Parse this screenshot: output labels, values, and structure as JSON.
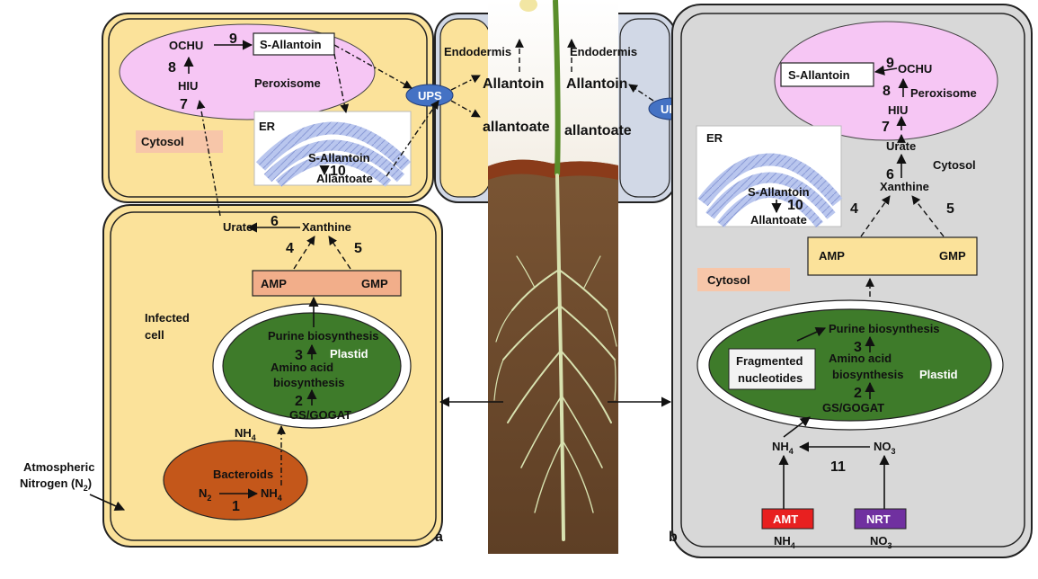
{
  "left_cell": {
    "peroxisome": {
      "ochu": "OCHU",
      "hiu": "HIU",
      "s_allantoin": "S-Allantoin",
      "label": "Peroxisome",
      "step7": "7",
      "step8": "8",
      "step9": "9"
    },
    "er": {
      "label": "ER",
      "s_allantoin": "S-Allantoin",
      "allantoate": "Allantoate",
      "step10": "10"
    },
    "cytosol": "Cytosol",
    "infected": {
      "urate": "Urate",
      "xanthine": "Xanthine",
      "step6": "6",
      "step4": "4",
      "step5": "5",
      "amp": "AMP",
      "gmp": "GMP",
      "cell_label_1": "Infected",
      "cell_label_2": "cell",
      "purine": "Purine biosynthesis",
      "step3": "3",
      "amino1": "Amino acid",
      "amino2": "biosynthesis",
      "plastid": "Plastid",
      "step2": "2",
      "gsgogat": "GS/GOGAT",
      "nh4": "NH",
      "nh4_sub": "4",
      "bacteroids": "Bacteroids",
      "n2": "N",
      "n2_sub": "2",
      "nh4b": "NH",
      "nh4b_sub": "4",
      "step1": "1"
    },
    "atm1": "Atmospheric",
    "atm2": "Nitrogen (N",
    "atm2_sub": "2",
    "atm2_end": ")",
    "panel": "a"
  },
  "center": {
    "endo_left": "Endodermis",
    "endo_right": "Endodermis",
    "allantoin_left": "Allantoin",
    "allantoin_right": "Allantoin",
    "allantoate_left": "allantoate",
    "allantoate_right": "allantoate",
    "ups_left": "UPS",
    "ups_right": "UPS"
  },
  "right_cell": {
    "peroxisome": {
      "s_allantoin": "S-Allantoin",
      "ochu": "OCHU",
      "hiu": "HIU",
      "label": "Peroxisome",
      "step9": "9",
      "step8": "8",
      "step7": "7"
    },
    "urate": "Urate",
    "step6": "6",
    "cytosol_small": "Cytosol",
    "xanthine": "Xanthine",
    "step4": "4",
    "step5": "5",
    "er": {
      "label": "ER",
      "s_allantoin": "S-Allantoin",
      "allantoate": "Allantoate",
      "step10": "10"
    },
    "amp": "AMP",
    "gmp": "GMP",
    "cytosol": "Cytosol",
    "purine": "Purine biosynthesis",
    "step3": "3",
    "amino1": "Amino acid",
    "amino2": "biosynthesis",
    "fragmented1": "Fragmented",
    "fragmented2": "nucleotides",
    "plastid": "Plastid",
    "step2": "2",
    "gsgogat": "GS/GOGAT",
    "nh4": "NH",
    "nh4_sub": "4",
    "no3": "NO",
    "no3_sub": "3",
    "step11": "11",
    "amt": "AMT",
    "nrt": "NRT",
    "amt_nh4": "NH",
    "amt_nh4_sub": "4",
    "nrt_no3": "NO",
    "nrt_no3_sub": "3",
    "panel": "b"
  },
  "colors": {
    "cell_yellow": "#fbe29a",
    "peroxisome": "#f6c6f4",
    "plastid": "#3e7b2a",
    "bacteroids": "#c4571a",
    "cytosol_label": "#f7c6a9",
    "amp_left": "#f2ae8a",
    "grey_cell": "#d8d8d8",
    "ups": "#4472c4",
    "amt": "#e82020",
    "nrt": "#7030a0",
    "soil": "#6b4a2d"
  }
}
